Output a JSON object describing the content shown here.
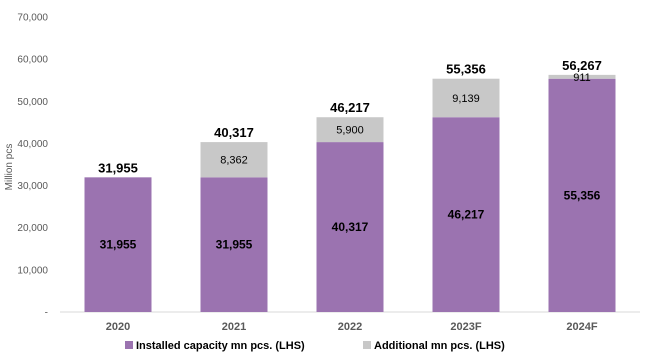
{
  "chart_data": {
    "type": "bar",
    "stacked": true,
    "categories": [
      "2020",
      "2021",
      "2022",
      "2023F",
      "2024F"
    ],
    "series": [
      {
        "name": "Installed capacity mn pcs. (LHS)",
        "color": "#9b73b0",
        "values": [
          31955,
          31955,
          40317,
          46217,
          55356
        ],
        "labels": [
          "31,955",
          "31,955",
          "40,317",
          "46,217",
          "55,356"
        ]
      },
      {
        "name": "Additional mn pcs. (LHS)",
        "color": "#c8c8c8",
        "values": [
          0,
          8362,
          5900,
          9139,
          911
        ],
        "labels": [
          "",
          "8,362",
          "5,900",
          "9,139",
          "911"
        ]
      }
    ],
    "totals": [
      31955,
      40317,
      46217,
      55356,
      56267
    ],
    "total_labels": [
      "31,955",
      "40,317",
      "46,217",
      "55,356",
      "56,267"
    ],
    "ylabel": "Million pcs",
    "ylim": [
      0,
      70000
    ],
    "yticks": [
      0,
      10000,
      20000,
      30000,
      40000,
      50000,
      60000,
      70000
    ],
    "ytick_labels": [
      "-",
      "10,000",
      "20,000",
      "30,000",
      "40,000",
      "50,000",
      "60,000",
      "70,000"
    ],
    "grid": false,
    "legend_position": "bottom"
  }
}
